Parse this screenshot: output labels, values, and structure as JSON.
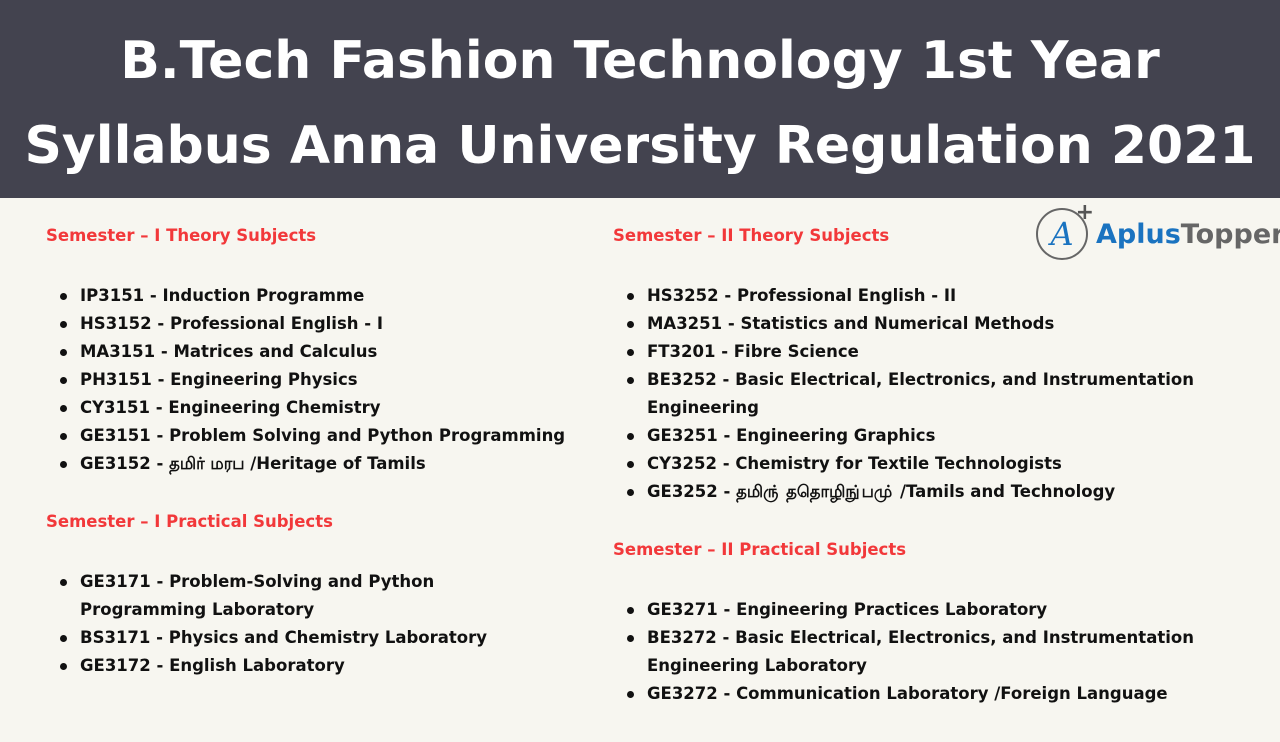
{
  "header": {
    "line1": "B.Tech Fashion Technology 1st Year",
    "line2": "Syllabus Anna University Regulation 2021"
  },
  "logo": {
    "mark": "A",
    "plus": "+",
    "part1": "Aplus",
    "part2": "Topper"
  },
  "colors": {
    "header_bg": "#43434f",
    "section_title": "#f2383a",
    "page_bg": "#f7f6f0"
  },
  "left": {
    "sem1_theory_title": "Semester – I Theory Subjects",
    "sem1_theory": [
      "IP3151 - Induction Programme",
      "HS3152 - Professional English - I",
      "MA3151 - Matrices and Calculus",
      "PH3151 - Engineering Physics",
      "CY3151 - Engineering Chemistry",
      "GE3151 - Problem Solving and Python Programming",
      "GE3152 - தமிர் மரப /Heritage of Tamils"
    ],
    "sem1_practical_title": "Semester – I Practical Subjects",
    "sem1_practical": [
      "GE3171 - Problem-Solving and Python Programming Laboratory",
      "BS3171 - Physics and Chemistry Laboratory",
      "GE3172 - English Laboratory"
    ]
  },
  "right": {
    "sem2_theory_title": "Semester – II Theory Subjects",
    "sem2_theory": [
      "HS3252 - Professional English - II",
      "MA3251 - Statistics and Numerical Methods",
      "FT3201 - Fibre Science",
      "BE3252 - Basic Electrical, Electronics, and Instrumentation Engineering",
      "GE3251 - Engineering Graphics",
      "CY3252 - Chemistry for Textile Technologists",
      "GE3252 - தமிரு் ததொழிநு்பமு் /Tamils and Technology"
    ],
    "sem2_practical_title": "Semester – II Practical Subjects",
    "sem2_practical": [
      "GE3271 - Engineering Practices Laboratory",
      "BE3272 - Basic Electrical, Electronics, and Instrumentation Engineering Laboratory",
      "GE3272 - Communication Laboratory /Foreign Language"
    ]
  }
}
